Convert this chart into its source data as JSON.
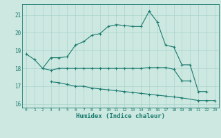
{
  "title": "",
  "xlabel": "Humidex (Indice chaleur)",
  "bg_color": "#cce8e0",
  "line_color": "#1a7a6e",
  "grid_color": "#aad4cc",
  "xlim": [
    -0.5,
    23.5
  ],
  "ylim": [
    15.8,
    21.6
  ],
  "yticks": [
    16,
    17,
    18,
    19,
    20,
    21
  ],
  "xticks": [
    0,
    1,
    2,
    3,
    4,
    5,
    6,
    7,
    8,
    9,
    10,
    11,
    12,
    13,
    14,
    15,
    16,
    17,
    18,
    19,
    20,
    21,
    22,
    23
  ],
  "series": {
    "max": {
      "x": [
        0,
        1,
        2,
        3,
        4,
        5,
        6,
        7,
        8,
        9,
        10,
        11,
        12,
        13,
        14,
        15,
        16,
        17,
        18,
        19,
        20,
        21,
        22
      ],
      "y": [
        18.8,
        18.5,
        18.0,
        18.6,
        18.6,
        18.65,
        19.3,
        19.5,
        19.85,
        19.95,
        20.35,
        20.45,
        20.4,
        20.35,
        20.35,
        21.2,
        20.6,
        19.3,
        19.2,
        18.2,
        18.2,
        16.7,
        16.7
      ]
    },
    "mean": {
      "x": [
        2,
        3,
        4,
        5,
        6,
        7,
        8,
        9,
        10,
        11,
        12,
        13,
        14,
        15,
        16,
        17,
        18,
        19,
        20
      ],
      "y": [
        18.0,
        17.9,
        18.0,
        18.0,
        18.0,
        18.0,
        18.0,
        18.0,
        18.0,
        18.0,
        18.0,
        18.0,
        18.0,
        18.05,
        18.05,
        18.05,
        17.95,
        17.3,
        17.3
      ]
    },
    "min": {
      "x": [
        3,
        4,
        5,
        6,
        7,
        8,
        9,
        10,
        11,
        12,
        13,
        14,
        15,
        16,
        17,
        18,
        19,
        21,
        22,
        23
      ],
      "y": [
        17.25,
        17.2,
        17.1,
        17.0,
        17.0,
        16.9,
        16.85,
        16.8,
        16.75,
        16.7,
        16.65,
        16.6,
        16.55,
        16.5,
        16.45,
        16.4,
        16.35,
        16.2,
        16.2,
        16.2
      ]
    }
  }
}
